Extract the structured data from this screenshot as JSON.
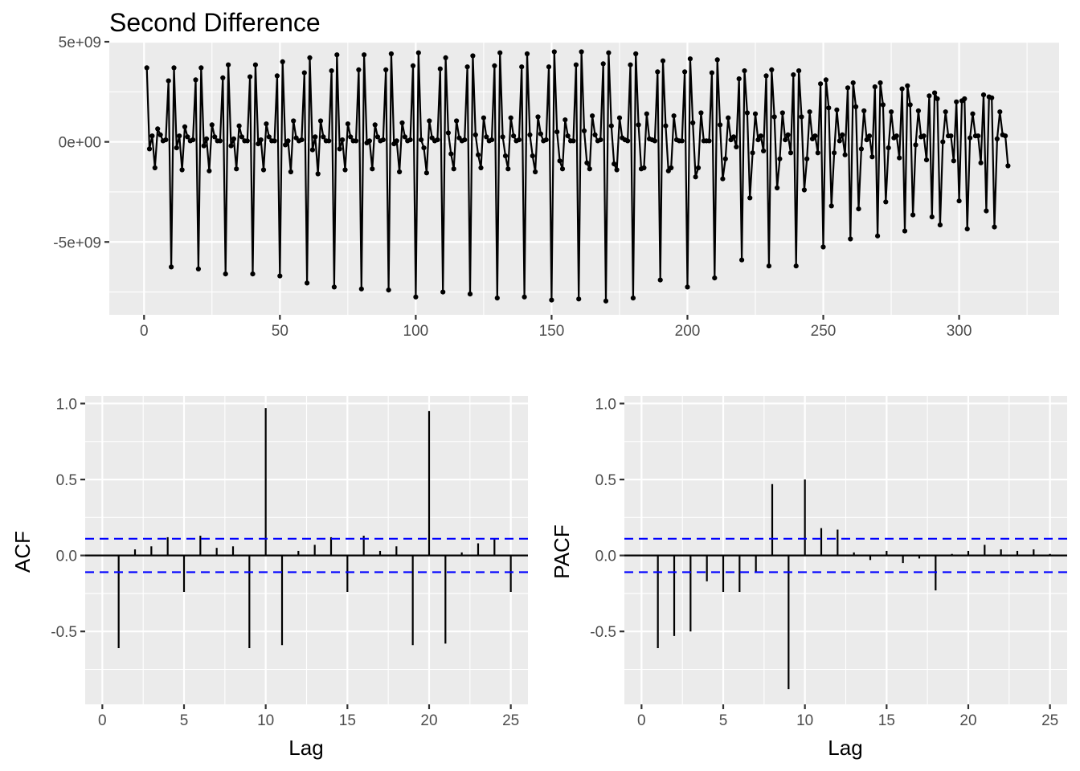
{
  "chart_data": [
    {
      "type": "line",
      "title": "Second Difference",
      "xlabel": "",
      "ylabel": "",
      "xlim": [
        -12.8,
        336.8
      ],
      "ylim": [
        -8640000000.0,
        4960000000.0
      ],
      "x_ticks": [
        0,
        50,
        100,
        150,
        200,
        250,
        300
      ],
      "x_tick_labels": [
        "0",
        "50",
        "100",
        "150",
        "200",
        "250",
        "300"
      ],
      "y_ticks": [
        -5000000000,
        0,
        5000000000
      ],
      "y_tick_labels": [
        "-5e+09",
        "0e+00",
        "5e+09"
      ],
      "grid": true,
      "markers": true,
      "period": 10,
      "x_start": 1,
      "x_end": 318,
      "series": [
        {
          "cycles": [
            [
              3700000000.0,
              -350000000.0,
              300000000.0,
              -1300000000.0,
              650000000.0,
              350000000.0,
              50000000.0,
              100000000.0,
              3050000000.0,
              -6250000000.0
            ],
            [
              3700000000.0,
              -300000000.0,
              300000000.0,
              -1400000000.0,
              750000000.0,
              250000000.0,
              50000000.0,
              100000000.0,
              3100000000.0,
              -6350000000.0
            ],
            [
              3700000000.0,
              -200000000.0,
              150000000.0,
              -1450000000.0,
              850000000.0,
              250000000.0,
              50000000.0,
              50000000.0,
              3200000000.0,
              -6600000000.0
            ],
            [
              3850000000.0,
              -200000000.0,
              150000000.0,
              -1350000000.0,
              800000000.0,
              250000000.0,
              50000000.0,
              50000000.0,
              3250000000.0,
              -6600000000.0
            ],
            [
              3850000000.0,
              -100000000.0,
              100000000.0,
              -1400000000.0,
              900000000.0,
              250000000.0,
              50000000.0,
              50000000.0,
              3300000000.0,
              -6700000000.0
            ],
            [
              4000000000.0,
              -150000000.0,
              50000000.0,
              -1500000000.0,
              1050000000.0,
              200000000.0,
              50000000.0,
              100000000.0,
              3450000000.0,
              -7050000000.0
            ],
            [
              4200000000.0,
              -400000000.0,
              250000000.0,
              -1600000000.0,
              1050000000.0,
              250000000.0,
              50000000.0,
              50000000.0,
              3550000000.0,
              -7250000000.0
            ],
            [
              4350000000.0,
              -350000000.0,
              100000000.0,
              -1400000000.0,
              900000000.0,
              250000000.0,
              50000000.0,
              50000000.0,
              3600000000.0,
              -7350000000.0
            ],
            [
              4350000000.0,
              -50000000.0,
              50000000.0,
              -1350000000.0,
              850000000.0,
              250000000.0,
              50000000.0,
              100000000.0,
              3600000000.0,
              -7400000000.0
            ],
            [
              4400000000.0,
              -100000000.0,
              50000000.0,
              -1500000000.0,
              950000000.0,
              250000000.0,
              50000000.0,
              100000000.0,
              3800000000.0,
              -7750000000.0
            ],
            [
              4450000000.0,
              100000000.0,
              -300000000.0,
              -1550000000.0,
              1050000000.0,
              200000000.0,
              50000000.0,
              100000000.0,
              3650000000.0,
              -7500000000.0
            ],
            [
              4200000000.0,
              450000000.0,
              -600000000.0,
              -1350000000.0,
              1050000000.0,
              200000000.0,
              50000000.0,
              100000000.0,
              3750000000.0,
              -7600000000.0
            ],
            [
              4300000000.0,
              350000000.0,
              -650000000.0,
              -1300000000.0,
              1200000000.0,
              250000000.0,
              50000000.0,
              100000000.0,
              3800000000.0,
              -7800000000.0
            ],
            [
              4450000000.0,
              250000000.0,
              -700000000.0,
              -1350000000.0,
              1200000000.0,
              300000000.0,
              50000000.0,
              100000000.0,
              3750000000.0,
              -7750000000.0
            ],
            [
              4400000000.0,
              350000000.0,
              -700000000.0,
              -1500000000.0,
              1250000000.0,
              400000000.0,
              50000000.0,
              100000000.0,
              3750000000.0,
              -7900000000.0
            ],
            [
              4500000000.0,
              500000000.0,
              -950000000.0,
              -1350000000.0,
              1100000000.0,
              300000000.0,
              50000000.0,
              50000000.0,
              3850000000.0,
              -7850000000.0
            ],
            [
              4500000000.0,
              550000000.0,
              -1050000000.0,
              -1350000000.0,
              1300000000.0,
              350000000.0,
              50000000.0,
              100000000.0,
              3900000000.0,
              -7950000000.0
            ],
            [
              4450000000.0,
              800000000.0,
              -1100000000.0,
              -1400000000.0,
              1200000000.0,
              200000000.0,
              100000000.0,
              50000000.0,
              3850000000.0,
              -7800000000.0
            ],
            [
              4400000000.0,
              850000000.0,
              -1350000000.0,
              -1300000000.0,
              1400000000.0,
              150000000.0,
              100000000.0,
              50000000.0,
              3500000000.0,
              -6900000000.0
            ],
            [
              4050000000.0,
              800000000.0,
              -1450000000.0,
              -1300000000.0,
              1300000000.0,
              100000000.0,
              50000000.0,
              50000000.0,
              3500000000.0,
              -7250000000.0
            ],
            [
              4150000000.0,
              950000000.0,
              -1750000000.0,
              -1300000000.0,
              1450000000.0,
              50000000.0,
              50000000.0,
              50000000.0,
              3450000000.0,
              -6800000000.0
            ],
            [
              4100000000.0,
              850000000.0,
              -1850000000.0,
              -850000000.0,
              1200000000.0,
              100000000.0,
              250000000.0,
              -250000000.0,
              3150000000.0,
              -5900000000.0
            ],
            [
              3550000000.0,
              1450000000.0,
              -2800000000.0,
              -550000000.0,
              1400000000.0,
              100000000.0,
              300000000.0,
              -450000000.0,
              3300000000.0,
              -6200000000.0
            ],
            [
              3600000000.0,
              1250000000.0,
              -2300000000.0,
              -850000000.0,
              1450000000.0,
              100000000.0,
              350000000.0,
              -550000000.0,
              3350000000.0,
              -6200000000.0
            ],
            [
              3550000000.0,
              1250000000.0,
              -2400000000.0,
              -850000000.0,
              1500000000.0,
              150000000.0,
              300000000.0,
              -550000000.0,
              2900000000.0,
              -5250000000.0
            ],
            [
              3100000000.0,
              1700000000.0,
              -3200000000.0,
              -550000000.0,
              1600000000.0,
              50000000.0,
              350000000.0,
              -650000000.0,
              2700000000.0,
              -4850000000.0
            ],
            [
              2950000000.0,
              1750000000.0,
              -3350000000.0,
              -350000000.0,
              1550000000.0,
              100000000.0,
              300000000.0,
              -750000000.0,
              2750000000.0,
              -4700000000.0
            ],
            [
              2950000000.0,
              1850000000.0,
              -3000000000.0,
              -300000000.0,
              1500000000.0,
              200000000.0,
              300000000.0,
              -800000000.0,
              2650000000.0,
              -4450000000.0
            ],
            [
              2800000000.0,
              1850000000.0,
              -3650000000.0,
              -150000000.0,
              1550000000.0,
              250000000.0,
              300000000.0,
              -900000000.0,
              2300000000.0,
              -3750000000.0
            ],
            [
              2450000000.0,
              2150000000.0,
              -4150000000.0,
              0.0,
              1500000000.0,
              300000000.0,
              300000000.0,
              -950000000.0,
              2000000000.0,
              -2950000000.0
            ],
            [
              2050000000.0,
              2150000000.0,
              -4350000000.0,
              200000000.0,
              1400000000.0,
              300000000.0,
              300000000.0,
              -1050000000.0,
              2350000000.0,
              -3450000000.0
            ],
            [
              2250000000.0,
              2200000000.0,
              -4250000000.0,
              150000000.0,
              1500000000.0,
              350000000.0,
              300000000.0,
              -1200000000.0
            ]
          ]
        }
      ]
    },
    {
      "type": "bar",
      "title": "",
      "xlabel": "Lag",
      "ylabel": "ACF",
      "xlim": [
        -1.05,
        26.05
      ],
      "ylim": [
        -0.98,
        1.05
      ],
      "x_ticks": [
        0,
        5,
        10,
        15,
        20,
        25
      ],
      "x_tick_labels": [
        "0",
        "5",
        "10",
        "15",
        "20",
        "25"
      ],
      "y_ticks": [
        -0.5,
        0,
        0.5,
        1
      ],
      "y_tick_labels": [
        "-0.5",
        "0.0",
        "0.5",
        "1.0"
      ],
      "grid": true,
      "ci": 0.11,
      "lags": [
        1,
        2,
        3,
        4,
        5,
        6,
        7,
        8,
        9,
        10,
        11,
        12,
        13,
        14,
        15,
        16,
        17,
        18,
        19,
        20,
        21,
        22,
        23,
        24,
        25
      ],
      "values": [
        -0.61,
        0.04,
        0.06,
        0.12,
        -0.24,
        0.13,
        0.05,
        0.06,
        -0.61,
        0.97,
        -0.59,
        0.03,
        0.07,
        0.12,
        -0.24,
        0.13,
        0.03,
        0.06,
        -0.59,
        0.95,
        -0.58,
        0.02,
        0.08,
        0.11,
        -0.24
      ]
    },
    {
      "type": "bar",
      "title": "",
      "xlabel": "Lag",
      "ylabel": "PACF",
      "xlim": [
        -1.05,
        26.05
      ],
      "ylim": [
        -0.98,
        1.05
      ],
      "x_ticks": [
        0,
        5,
        10,
        15,
        20,
        25
      ],
      "x_tick_labels": [
        "0",
        "5",
        "10",
        "15",
        "20",
        "25"
      ],
      "y_ticks": [
        -0.5,
        0,
        0.5,
        1
      ],
      "y_tick_labels": [
        "-0.5",
        "0.0",
        "0.5",
        "1.0"
      ],
      "grid": true,
      "ci": 0.11,
      "lags": [
        1,
        2,
        3,
        4,
        5,
        6,
        7,
        8,
        9,
        10,
        11,
        12,
        13,
        14,
        15,
        16,
        17,
        18,
        19,
        20,
        21,
        22,
        23,
        24,
        25
      ],
      "values": [
        -0.61,
        -0.53,
        -0.5,
        -0.17,
        -0.24,
        -0.24,
        -0.11,
        0.47,
        -0.88,
        0.5,
        0.18,
        0.17,
        0.02,
        -0.03,
        0.03,
        -0.05,
        -0.02,
        -0.23,
        0.01,
        0.03,
        0.07,
        0.04,
        0.03,
        0.04,
        0.01
      ]
    }
  ]
}
